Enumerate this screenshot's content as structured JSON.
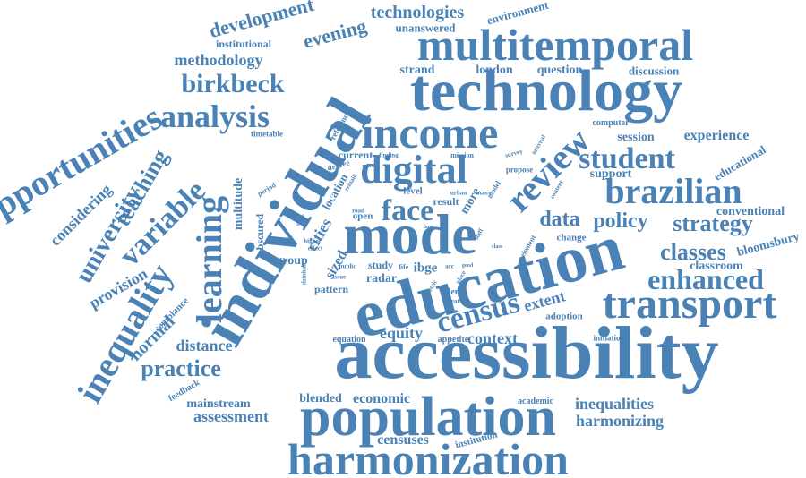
{
  "colors": {
    "word": "#4a82b5",
    "background": "#ffffff"
  },
  "words": {
    "accessibility": "accessibility",
    "education": "education",
    "individual": "individual",
    "technology": "technology",
    "mode": "mode",
    "population": "population",
    "harmonization": "harmonization",
    "multitemporal": "multitemporal",
    "income": "income",
    "transport": "transport",
    "digital": "digital",
    "learning": "learning",
    "inequality": "inequality",
    "brazilian": "brazilian",
    "opportunities": "opportunities",
    "analysis": "analysis",
    "review": "review",
    "census": "census",
    "student": "student",
    "enhanced": "enhanced",
    "variable": "variable",
    "face": "face",
    "university": "university",
    "birkbeck": "birkbeck",
    "practice": "practice",
    "teaching": "teaching",
    "classes": "classes",
    "strategy": "strategy",
    "policy": "policy",
    "data": "data",
    "evening": "evening",
    "development": "development",
    "technologies": "technologies",
    "methodology": "methodology",
    "considering": "considering",
    "normal": "normal",
    "provision": "provision",
    "distance": "distance",
    "assessment": "assessment",
    "mainstream": "mainstream",
    "harmonizing": "harmonizing",
    "inequalities": "inequalities",
    "context": "context",
    "equity": "equity",
    "economic": "economic",
    "blended": "blended",
    "censuses": "censuses",
    "extent": "extent",
    "experience": "experience",
    "session": "session",
    "conventional": "conventional",
    "classroom": "classroom",
    "bloomsbury": "bloomsbury",
    "support": "support",
    "educational": "educational",
    "strand": "strand",
    "london": "london",
    "question": "question",
    "discussion": "discussion",
    "unanswered": "unanswered",
    "environment": "environment",
    "institutional": "institutional",
    "multitude": "multitude",
    "obscured": "obscured",
    "cities": "cities",
    "group": "group",
    "sized": "sized",
    "pattern": "pattern",
    "radar": "radar",
    "study": "study",
    "ibge": "ibge",
    "result": "result",
    "more": "more",
    "level": "level",
    "open": "open",
    "location": "location",
    "current": "current",
    "mission": "mission",
    "propose": "propose",
    "computer": "computer",
    "adoption": "adoption",
    "initiation": "initiation",
    "academic": "academic",
    "institution": "institution",
    "feedback": "feedback",
    "semblance": "semblance",
    "timetable": "timetable",
    "reference": "reference",
    "change": "change",
    "equation": "equation",
    "appetite": "appetite",
    "degree": "degree",
    "period": "period",
    "finding": "finding",
    "survey": "survey",
    "internal": "internal",
    "element": "element",
    "model": "model",
    "many": "many",
    "urban": "urban",
    "staff": "staff",
    "place": "place",
    "good": "good",
    "mind": "mind",
    "remain": "remain",
    "higher": "higher",
    "effect": "effect",
    "public": "public",
    "issue": "issue",
    "dzinhan": "dzinhan",
    "life": "life",
    "acc": "acc",
    "blend": "blend",
    "great": "great",
    "metric": "metric",
    "class": "class",
    "usage": "usage",
    "road": "road",
    "time": "time",
    "content": "content"
  }
}
